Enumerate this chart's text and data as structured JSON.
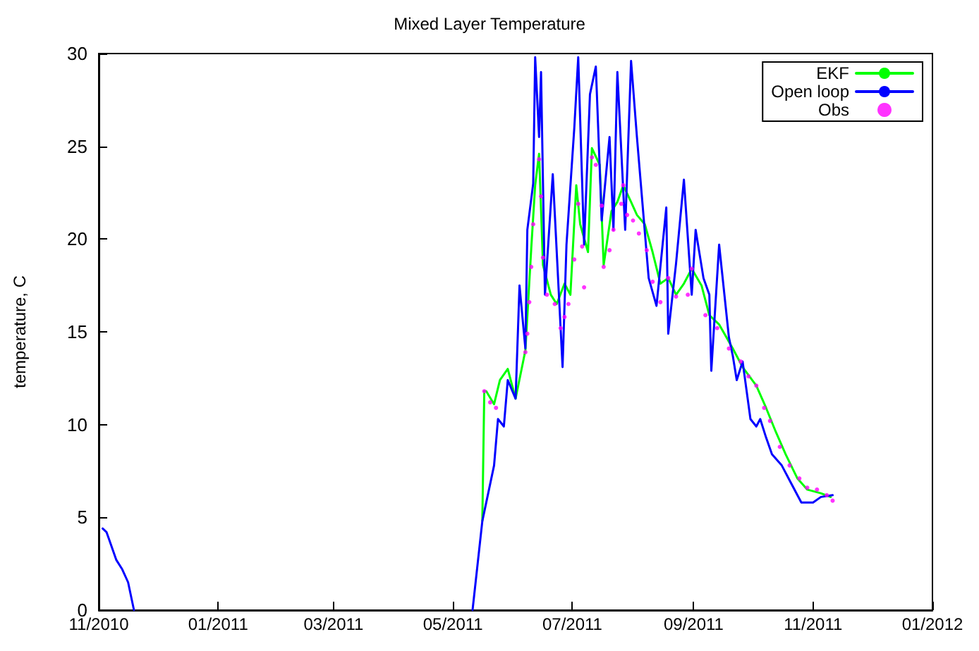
{
  "chart_data": {
    "type": "line",
    "title": "Mixed Layer Temperature",
    "ylabel": "temperature, C",
    "xlim": [
      "2010-11-01",
      "2012-01-01"
    ],
    "ylim": [
      0,
      30
    ],
    "xticks": [
      {
        "value": "2010-11-01",
        "label": "11/2010"
      },
      {
        "value": "2011-01-01",
        "label": "01/2011"
      },
      {
        "value": "2011-03-01",
        "label": "03/2011"
      },
      {
        "value": "2011-05-01",
        "label": "05/2011"
      },
      {
        "value": "2011-07-01",
        "label": "07/2011"
      },
      {
        "value": "2011-09-01",
        "label": "09/2011"
      },
      {
        "value": "2011-11-01",
        "label": "11/2011"
      },
      {
        "value": "2012-01-01",
        "label": "01/2012"
      }
    ],
    "yticks": [
      0,
      5,
      10,
      15,
      20,
      25,
      30
    ],
    "grid": false,
    "legend": "top right",
    "marker": "none",
    "line_style": "solid",
    "series": [
      {
        "name": "EKF",
        "color": "#00ff00",
        "x": [
          "2011-05-16",
          "2011-05-17",
          "2011-05-18",
          "2011-05-22",
          "2011-05-25",
          "2011-05-29",
          "2011-06-02",
          "2011-06-07",
          "2011-06-10",
          "2011-06-12",
          "2011-06-14",
          "2011-06-16",
          "2011-06-20",
          "2011-06-23",
          "2011-06-27",
          "2011-06-30",
          "2011-07-03",
          "2011-07-05",
          "2011-07-09",
          "2011-07-11",
          "2011-07-15",
          "2011-07-17",
          "2011-07-21",
          "2011-07-24",
          "2011-07-27",
          "2011-07-31",
          "2011-08-03",
          "2011-08-07",
          "2011-08-11",
          "2011-08-15",
          "2011-08-19",
          "2011-08-23",
          "2011-08-27",
          "2011-08-31",
          "2011-09-05",
          "2011-09-09",
          "2011-09-14",
          "2011-09-21",
          "2011-09-26",
          "2011-10-03",
          "2011-10-08",
          "2011-10-13",
          "2011-10-18",
          "2011-10-24",
          "2011-10-29",
          "2011-11-05",
          "2011-11-10"
        ],
        "values": [
          4.8,
          11.8,
          11.8,
          11.1,
          12.4,
          13,
          11.4,
          14,
          19.5,
          22.9,
          24.6,
          18.6,
          17,
          16.5,
          17.6,
          17,
          22.9,
          20.8,
          19.3,
          24.9,
          24,
          18.6,
          21.5,
          22,
          22.9,
          22,
          21.3,
          20.8,
          19.3,
          17.6,
          17.9,
          17,
          17.6,
          18.4,
          17.5,
          15.9,
          15.4,
          14.1,
          13.1,
          12.1,
          10.9,
          9.6,
          8.4,
          7.1,
          6.5,
          6.3,
          6.1
        ]
      },
      {
        "name": "Open loop",
        "color": "#0000ff",
        "x": [
          "2010-11-03",
          "2010-11-05",
          "2010-11-07",
          "2010-11-10",
          "2010-11-13",
          "2010-11-16",
          "2010-11-19",
          "2011-01-01",
          "2011-05-11",
          "2011-05-16",
          "2011-05-22",
          "2011-05-24",
          "2011-05-27",
          "2011-05-29",
          "2011-06-02",
          "2011-06-04",
          "2011-06-07",
          "2011-06-08",
          "2011-06-11",
          "2011-06-12",
          "2011-06-14",
          "2011-06-15",
          "2011-06-17",
          "2011-06-21",
          "2011-06-25",
          "2011-06-26",
          "2011-06-28",
          "2011-07-02",
          "2011-07-04",
          "2011-07-07",
          "2011-07-10",
          "2011-07-13",
          "2011-07-16",
          "2011-07-20",
          "2011-07-22",
          "2011-07-24",
          "2011-07-28",
          "2011-07-31",
          "2011-08-03",
          "2011-08-09",
          "2011-08-13",
          "2011-08-18",
          "2011-08-19",
          "2011-08-23",
          "2011-08-27",
          "2011-08-31",
          "2011-09-02",
          "2011-09-06",
          "2011-09-09",
          "2011-09-10",
          "2011-09-14",
          "2011-09-19",
          "2011-09-21",
          "2011-09-23",
          "2011-09-26",
          "2011-09-30",
          "2011-10-03",
          "2011-10-05",
          "2011-10-08",
          "2011-10-11",
          "2011-10-16",
          "2011-10-21",
          "2011-10-26",
          "2011-11-01",
          "2011-11-05",
          "2011-11-11"
        ],
        "values": [
          4.4,
          4.2,
          3.6,
          2.7,
          2.2,
          1.5,
          0,
          null,
          0,
          4.8,
          7.8,
          10.3,
          9.9,
          12.4,
          11.4,
          17.5,
          14.1,
          20.5,
          23,
          29.8,
          25.5,
          29,
          17,
          23.5,
          15.2,
          13.1,
          19.7,
          26,
          29.8,
          19.7,
          27.8,
          29.3,
          21,
          25.5,
          20.5,
          29,
          20.5,
          29.6,
          25.5,
          17.9,
          16.4,
          21.7,
          14.9,
          18.7,
          23.2,
          17,
          20.5,
          17.9,
          17,
          12.9,
          19.7,
          14.7,
          13.7,
          12.4,
          13.4,
          10.3,
          9.9,
          10.3,
          9.3,
          8.4,
          7.8,
          6.8,
          5.8,
          5.8,
          6.1,
          6.2
        ]
      },
      {
        "name": "Obs",
        "type": "scatter",
        "color": "#ff00ff",
        "x": [
          "2011-05-17",
          "2011-05-20",
          "2011-05-23",
          "2011-06-07",
          "2011-06-08",
          "2011-06-09",
          "2011-06-10",
          "2011-06-11",
          "2011-06-14",
          "2011-06-15",
          "2011-06-16",
          "2011-06-18",
          "2011-06-22",
          "2011-06-25",
          "2011-06-27",
          "2011-06-29",
          "2011-07-02",
          "2011-07-04",
          "2011-07-06",
          "2011-07-07",
          "2011-07-11",
          "2011-07-13",
          "2011-07-16",
          "2011-07-17",
          "2011-07-20",
          "2011-07-22",
          "2011-07-26",
          "2011-07-27",
          "2011-07-29",
          "2011-08-01",
          "2011-08-04",
          "2011-08-08",
          "2011-08-11",
          "2011-08-15",
          "2011-08-19",
          "2011-08-23",
          "2011-08-29",
          "2011-08-31",
          "2011-09-07",
          "2011-09-13",
          "2011-09-19",
          "2011-09-25",
          "2011-09-29",
          "2011-10-03",
          "2011-10-07",
          "2011-10-10",
          "2011-10-15",
          "2011-10-20",
          "2011-10-25",
          "2011-10-29",
          "2011-11-03",
          "2011-11-08",
          "2011-11-11"
        ],
        "values": [
          11.8,
          11.2,
          10.9,
          13.9,
          14.9,
          16.6,
          18.5,
          20.8,
          24.3,
          22.3,
          19,
          17,
          16.5,
          15.2,
          15.8,
          16.5,
          18.9,
          21.9,
          19.6,
          17.4,
          24.4,
          24,
          21.8,
          18.5,
          19.4,
          20.5,
          21.9,
          22.9,
          21.3,
          21,
          20.3,
          19.4,
          17.7,
          16.6,
          17.9,
          16.9,
          17,
          18.4,
          15.9,
          15.2,
          14.1,
          13.4,
          12.6,
          12.1,
          10.9,
          10.2,
          8.8,
          7.8,
          7.1,
          6.6,
          6.5,
          6.2,
          5.9
        ]
      }
    ]
  }
}
